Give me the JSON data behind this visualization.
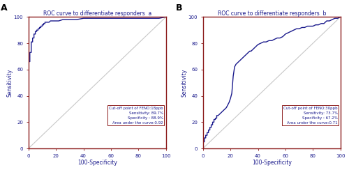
{
  "panel_A": {
    "title": "ROC curve to differentiate responders",
    "title_superscript": "a",
    "xlabel": "100-Specificity",
    "ylabel": "Sensitivity",
    "label": "A",
    "box_text": "Cut-off point of FENO:18ppb\nSensitivity: 89.7%\nSpecificity : 88.9%\nArea under the curve:0.92",
    "roc_color": "#1a1a8c",
    "diagonal_color": "#c8c8c8",
    "spine_color": "#8b1a1a",
    "background": "#ffffff",
    "auc": 0.92,
    "roc_x": [
      0,
      0,
      0,
      0,
      0,
      0,
      1,
      1,
      1,
      1,
      1,
      1,
      1,
      1,
      2,
      2,
      2,
      2,
      2,
      2,
      2,
      3,
      3,
      3,
      3,
      4,
      4,
      4,
      4,
      5,
      5,
      5,
      6,
      6,
      7,
      7,
      8,
      8,
      9,
      9,
      10,
      10,
      11,
      11,
      12,
      12,
      13,
      14,
      15,
      16,
      17,
      18,
      19,
      20,
      22,
      25,
      28,
      30,
      35,
      40,
      45,
      50,
      55,
      60,
      65,
      70,
      75,
      80,
      85,
      90,
      95,
      100
    ],
    "roc_y": [
      0,
      20,
      21,
      22,
      65,
      66,
      66,
      67,
      68,
      69,
      70,
      71,
      72,
      73,
      73,
      74,
      75,
      76,
      78,
      80,
      81,
      81,
      82,
      83,
      84,
      84,
      85,
      86,
      87,
      87,
      88,
      89,
      89,
      90,
      90,
      91,
      91,
      92,
      92,
      93,
      93,
      94,
      94,
      95,
      95,
      96,
      96,
      96,
      96,
      97,
      97,
      97,
      97,
      97,
      97,
      98,
      98,
      98,
      98,
      99,
      99,
      99,
      99,
      99,
      99,
      99,
      99,
      99,
      99,
      99,
      99,
      100
    ]
  },
  "panel_B": {
    "title": "ROC curve to differentiate responders",
    "title_superscript": "b",
    "xlabel": "100-Specificity",
    "ylabel": "Sensitivity",
    "label": "B",
    "box_text": "Cut-off point of FENO:30ppb\nSensitivity: 73.7%\nSpecificity : 67.2%\nArea under the curve:0.71",
    "roc_color": "#1a1a8c",
    "diagonal_color": "#c8c8c8",
    "spine_color": "#8b1a1a",
    "background": "#ffffff",
    "auc": 0.71,
    "roc_x": [
      0,
      0,
      1,
      1,
      2,
      2,
      3,
      3,
      4,
      4,
      5,
      5,
      6,
      6,
      7,
      7,
      8,
      8,
      9,
      9,
      10,
      10,
      11,
      12,
      13,
      14,
      15,
      16,
      17,
      18,
      19,
      20,
      21,
      22,
      23,
      24,
      25,
      26,
      27,
      28,
      29,
      30,
      31,
      32,
      33,
      34,
      35,
      36,
      37,
      38,
      39,
      40,
      42,
      44,
      46,
      48,
      50,
      52,
      54,
      56,
      58,
      60,
      62,
      64,
      66,
      68,
      70,
      72,
      74,
      76,
      78,
      80,
      82,
      84,
      86,
      88,
      90,
      92,
      94,
      96,
      98,
      100
    ],
    "roc_y": [
      0,
      5,
      5,
      8,
      8,
      10,
      10,
      12,
      12,
      14,
      14,
      16,
      16,
      18,
      18,
      20,
      20,
      22,
      22,
      23,
      23,
      25,
      25,
      26,
      27,
      28,
      29,
      30,
      31,
      33,
      35,
      38,
      42,
      55,
      62,
      64,
      65,
      66,
      67,
      68,
      69,
      70,
      71,
      72,
      73,
      74,
      74,
      75,
      76,
      77,
      78,
      79,
      80,
      81,
      81,
      82,
      82,
      83,
      84,
      84,
      85,
      87,
      88,
      89,
      90,
      91,
      91,
      92,
      92,
      93,
      93,
      93,
      94,
      94,
      95,
      95,
      97,
      97,
      98,
      99,
      99,
      100
    ]
  }
}
